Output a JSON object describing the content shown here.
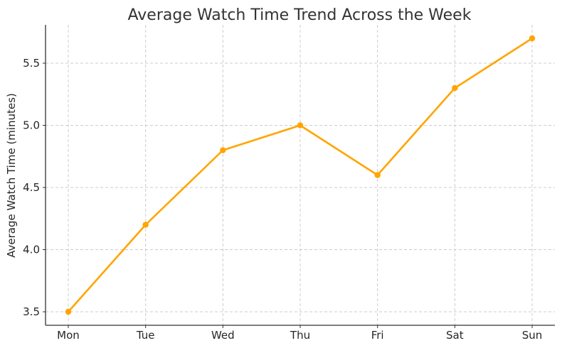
{
  "chart_data": {
    "type": "line",
    "title": "Average Watch Time Trend Across the Week",
    "xlabel": "",
    "ylabel": "Average Watch Time (minutes)",
    "categories": [
      "Mon",
      "Tue",
      "Wed",
      "Thu",
      "Fri",
      "Sat",
      "Sun"
    ],
    "series": [
      {
        "name": "Average Watch Time",
        "values": [
          3.5,
          4.2,
          4.8,
          5.0,
          4.6,
          5.3,
          5.7
        ],
        "color": "#FFA500",
        "marker": "circle"
      }
    ],
    "yticks": [
      3.5,
      4.0,
      4.5,
      5.0,
      5.5
    ],
    "ytick_labels": [
      "3.5",
      "4.0",
      "4.5",
      "5.0",
      "5.5"
    ],
    "ylim": [
      3.39,
      5.81
    ],
    "grid": true,
    "legend": null
  }
}
